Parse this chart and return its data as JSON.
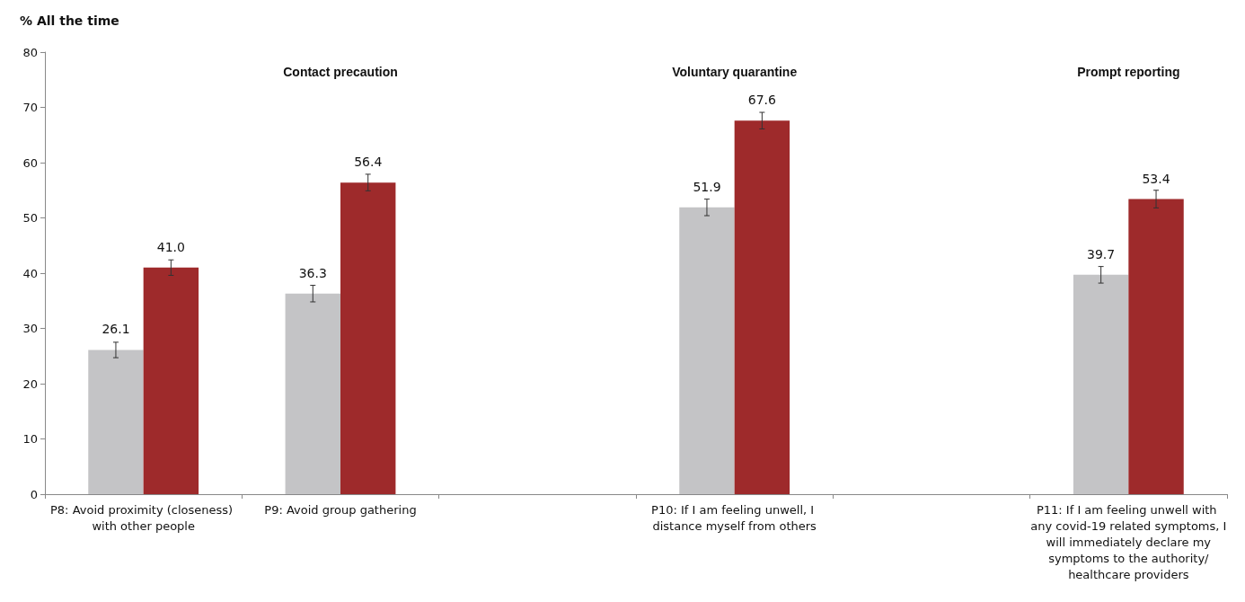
{
  "chart_data": {
    "type": "bar",
    "ylabel": "% All the time",
    "categories": [
      "P8: Avoid proximity (closeness) with other people",
      "P9: Avoid group gathering",
      null,
      "P10: If I am feeling unwell, I distance myself from others",
      null,
      "P11: If I am feeling unwell with any covid-19 related symptoms, I will immediately declare my symptoms to the authority/healthcare providers"
    ],
    "series": [
      {
        "color": "#c4c4c6",
        "values": [
          26.1,
          36.3,
          null,
          51.9,
          null,
          39.7
        ],
        "value_labels": [
          "26.1",
          "36.3",
          null,
          "51.9",
          null,
          "39.7"
        ],
        "errors": [
          1.4,
          1.5,
          null,
          1.5,
          null,
          1.5
        ]
      },
      {
        "color": "#9e2a2b",
        "values": [
          41.0,
          56.4,
          null,
          67.6,
          null,
          53.4
        ],
        "value_labels": [
          "41.0",
          "56.4",
          null,
          "67.6",
          null,
          "53.4"
        ],
        "errors": [
          1.4,
          1.5,
          null,
          1.5,
          null,
          1.6
        ]
      }
    ],
    "annotations": [
      "Contact precaution",
      "Voluntary quarantine",
      "Prompt reporting"
    ],
    "ylim": [
      0,
      80
    ],
    "yticks": [
      0,
      10,
      20,
      30,
      40,
      50,
      60,
      70,
      80
    ],
    "grid": false
  }
}
